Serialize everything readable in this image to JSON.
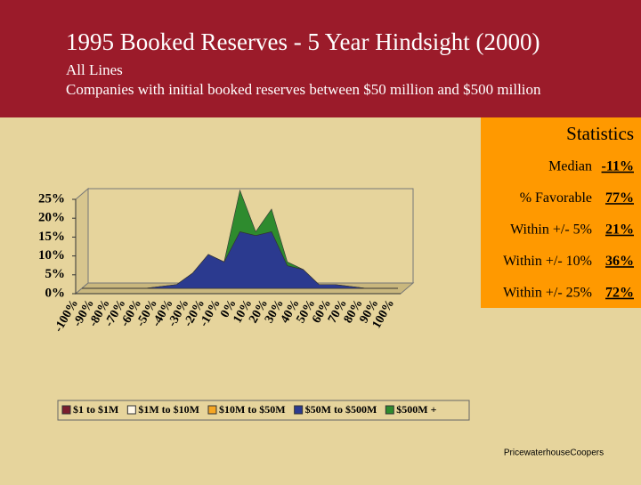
{
  "header": {
    "title": "1995 Booked Reserves - 5 Year Hindsight (2000)",
    "line1": "All Lines",
    "line2": "Companies with initial booked reserves between $50 million and $500 million"
  },
  "statistics": {
    "title": "Statistics",
    "rows": [
      {
        "label": "Median",
        "value": "-11%"
      },
      {
        "label": "% Favorable",
        "value": "77%"
      },
      {
        "label": "Within +/- 5%",
        "value": "21%"
      },
      {
        "label": "Within +/- 10%",
        "value": "36%"
      },
      {
        "label": "Within +/- 25%",
        "value": "72%"
      }
    ]
  },
  "footer": "PricewaterhouseCoopers",
  "chart_data": {
    "type": "area",
    "categories": [
      "-100%",
      "-90%",
      "-80%",
      "-70%",
      "-60%",
      "-50%",
      "-40%",
      "-30%",
      "-20%",
      "-10%",
      "0%",
      "10%",
      "20%",
      "30%",
      "40%",
      "50%",
      "60%",
      "70%",
      "80%",
      "90%",
      "100%"
    ],
    "series": [
      {
        "name": "$1 to $1M",
        "color": "#7a1e2e",
        "values": [
          0,
          0,
          0,
          0,
          0,
          0,
          0,
          0,
          0,
          0,
          0,
          0,
          0,
          0,
          0,
          0,
          0,
          0,
          0,
          0,
          0
        ]
      },
      {
        "name": "$1M to $10M",
        "color": "#fff8e8",
        "values": [
          0,
          0,
          0,
          0,
          0,
          0,
          0,
          0,
          0,
          0,
          0,
          0,
          0,
          0,
          0,
          0,
          0,
          0,
          0,
          0,
          0
        ]
      },
      {
        "name": "$10M to $50M",
        "color": "#f5a623",
        "values": [
          0,
          0,
          0,
          0,
          0,
          0,
          0,
          0,
          0,
          0,
          0,
          0,
          0,
          0,
          0,
          0,
          0,
          0,
          0,
          0,
          0
        ]
      },
      {
        "name": "$50M to $500M",
        "color": "#2b3a8f",
        "values": [
          0,
          0,
          0,
          0,
          0,
          0.5,
          1,
          4,
          9,
          7,
          15,
          14,
          15,
          6,
          5,
          1,
          1,
          0.5,
          0,
          0,
          0
        ]
      },
      {
        "name": "$500M +",
        "color": "#2e8b2e",
        "values": [
          0,
          0,
          0,
          0,
          0,
          0,
          0,
          0,
          0,
          0,
          11,
          1,
          6,
          1,
          0,
          0,
          0,
          0,
          0,
          0,
          0
        ]
      }
    ],
    "ylim": [
      0,
      25
    ],
    "yticks": [
      {
        "value": 0,
        "label": "0%"
      },
      {
        "value": 5,
        "label": "5%"
      },
      {
        "value": 10,
        "label": "10%"
      },
      {
        "value": 15,
        "label": "15%"
      },
      {
        "value": 20,
        "label": "20%"
      },
      {
        "value": 25,
        "label": "25%"
      }
    ],
    "grid": false,
    "legend": "bottom"
  }
}
